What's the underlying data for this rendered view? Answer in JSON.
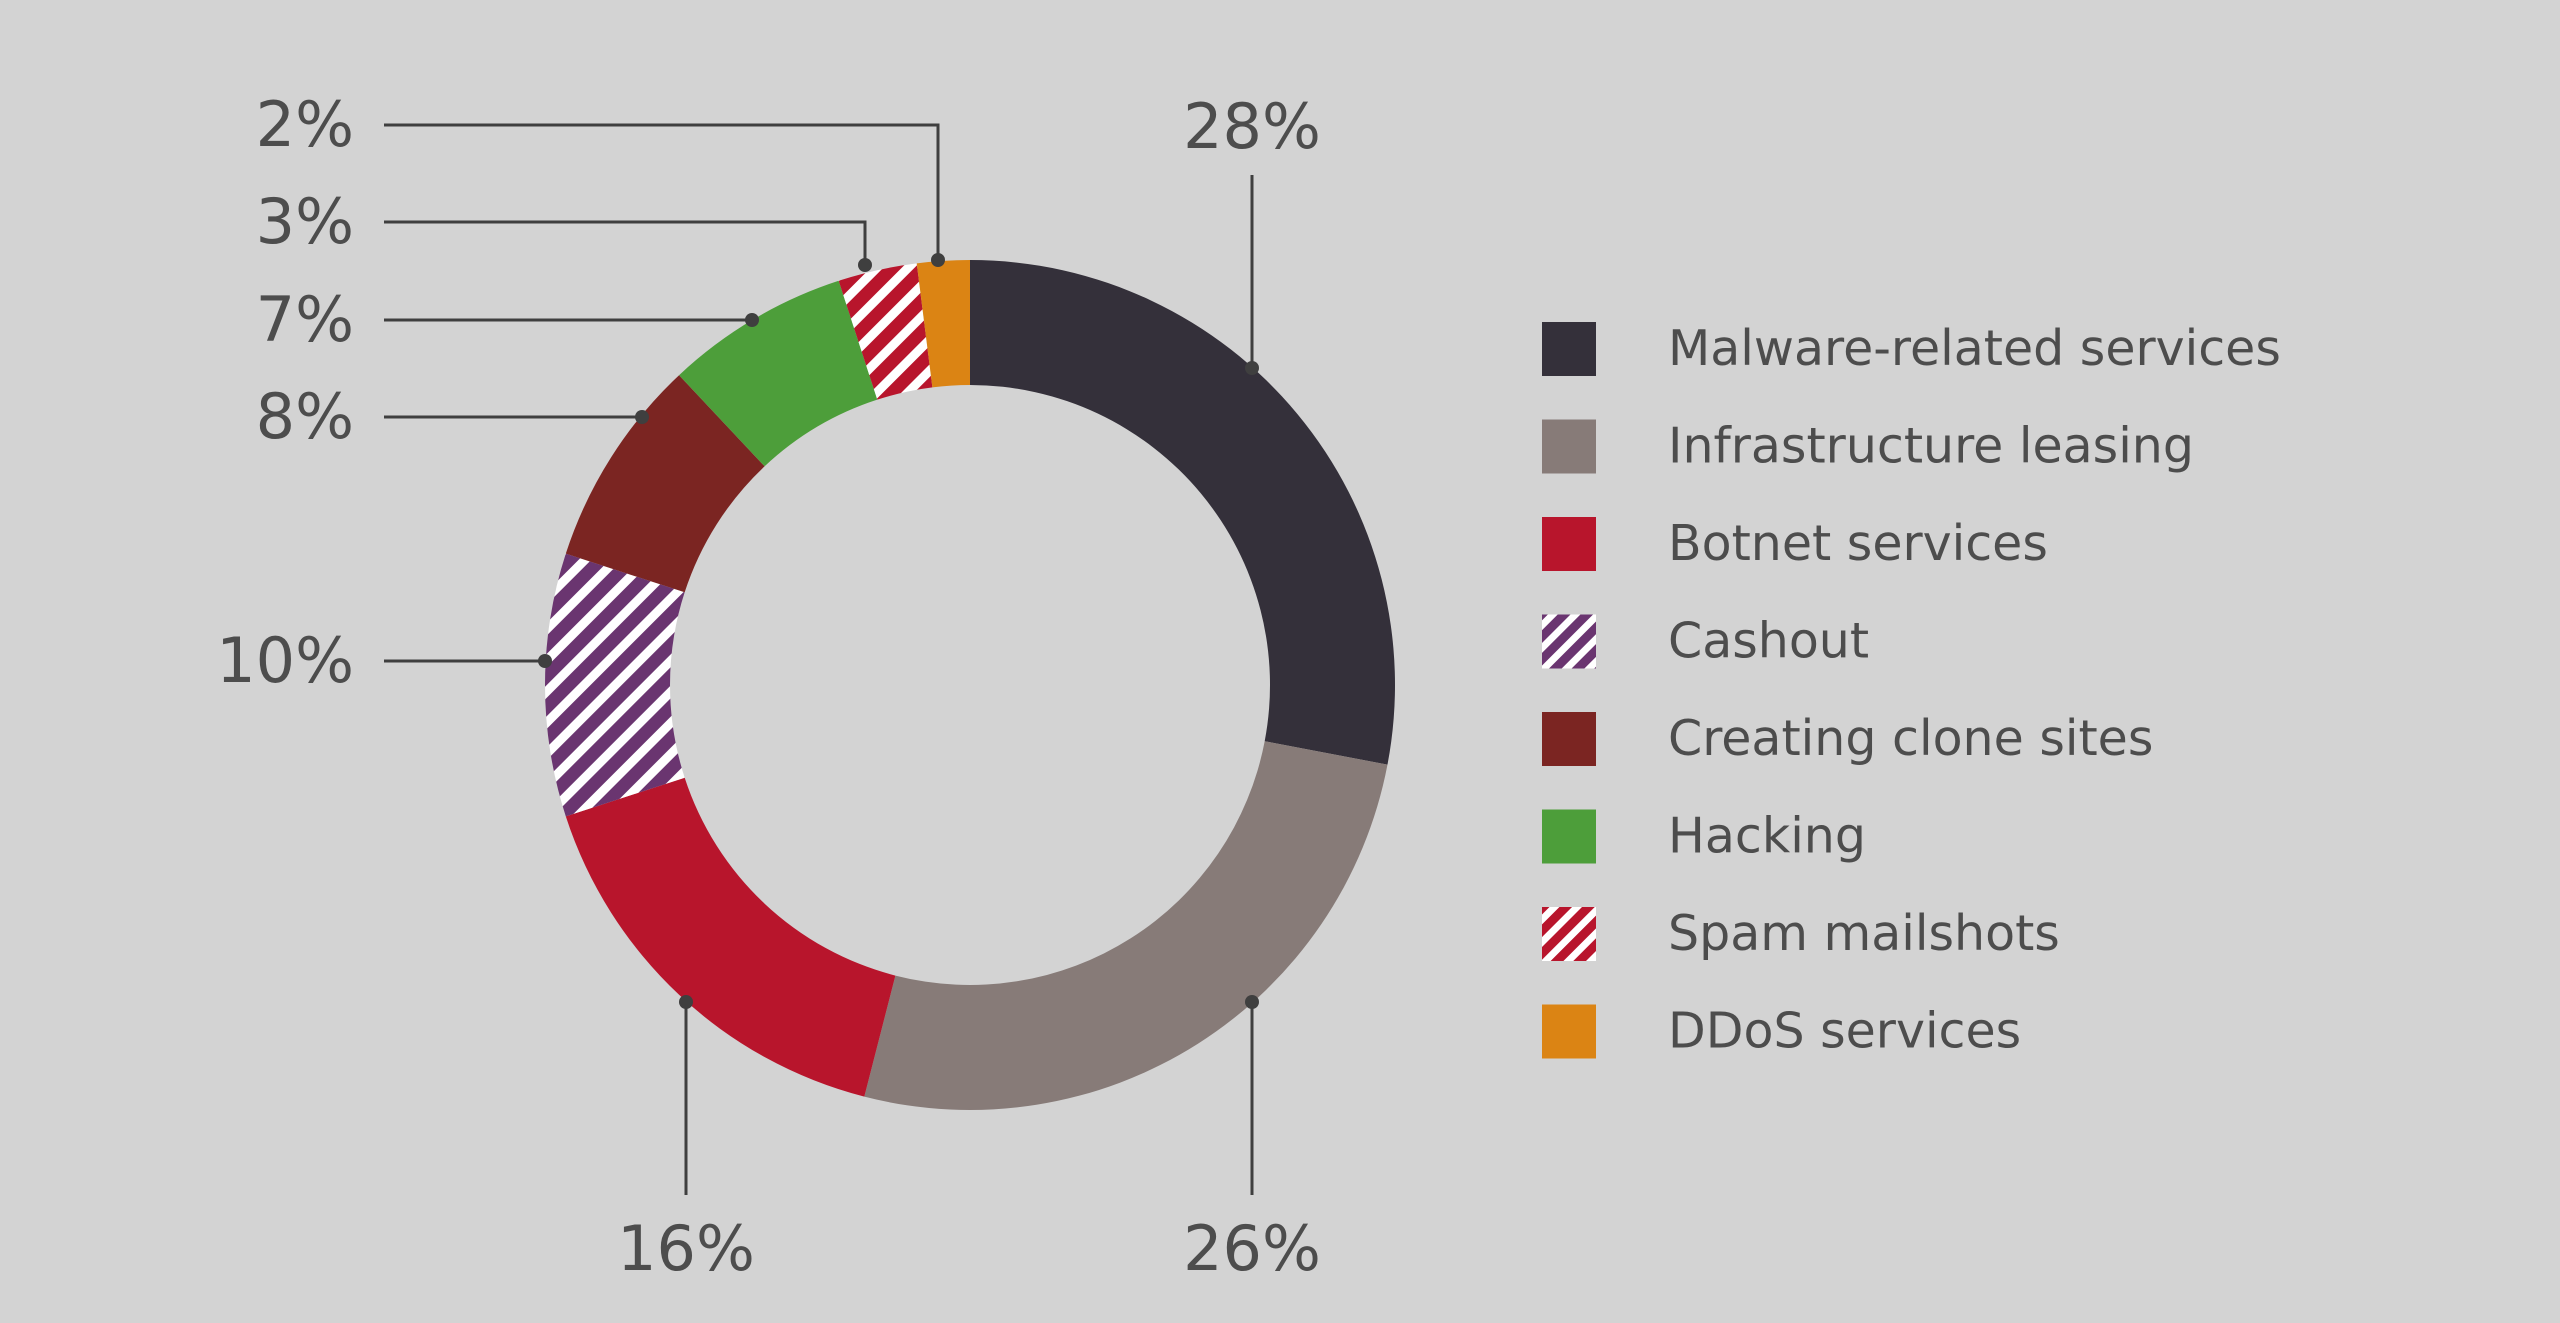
{
  "chart_data": {
    "type": "pie",
    "donut": true,
    "title": "",
    "categories": [
      "Malware-related services",
      "Infrastructure leasing",
      "Botnet services",
      "Cashout",
      "Creating clone sites",
      "Hacking",
      "Spam mailshots",
      "DDoS services"
    ],
    "values": [
      28,
      26,
      16,
      10,
      8,
      7,
      3,
      2
    ],
    "value_labels": [
      "28%",
      "26%",
      "16%",
      "10%",
      "8%",
      "7%",
      "3%",
      "2%"
    ],
    "colors": [
      "#34303a",
      "#877b78",
      "#b8152c",
      "#6a3570",
      "#7b2522",
      "#4d9e3a",
      "#b8152c",
      "#db8414"
    ],
    "hatched": [
      false,
      false,
      false,
      true,
      false,
      false,
      true,
      false
    ],
    "legend_position": "right",
    "grid": false
  }
}
